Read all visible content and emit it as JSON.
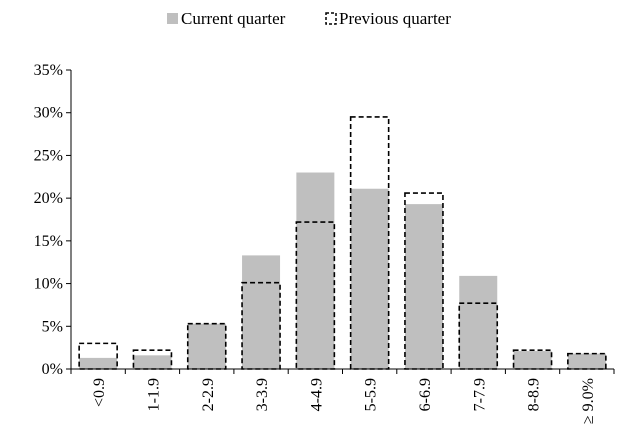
{
  "chart_data": {
    "type": "bar",
    "categories": [
      "<0.9",
      "1-1.9",
      "2-2.9",
      "3-3.9",
      "4-4.9",
      "5-5.9",
      "6-6.9",
      "7-7.9",
      "8-8.9",
      "≥ 9.0%"
    ],
    "series": [
      {
        "name": "Current quarter",
        "values": [
          1.3,
          1.6,
          5.3,
          13.3,
          23.0,
          21.1,
          19.3,
          10.9,
          2.1,
          1.8
        ],
        "style": "solid",
        "color": "#bfbfbf"
      },
      {
        "name": "Previous quarter",
        "values": [
          3.0,
          2.2,
          5.3,
          10.1,
          17.2,
          29.5,
          20.6,
          7.7,
          2.2,
          1.8
        ],
        "style": "dashed-outline",
        "color": "#000000"
      }
    ],
    "yticks": [
      "0%",
      "5%",
      "10%",
      "15%",
      "20%",
      "25%",
      "30%",
      "35%"
    ],
    "ylim": [
      0,
      35
    ],
    "grid": false,
    "legend_position": "top-center",
    "title": "",
    "xlabel": "",
    "ylabel": ""
  }
}
